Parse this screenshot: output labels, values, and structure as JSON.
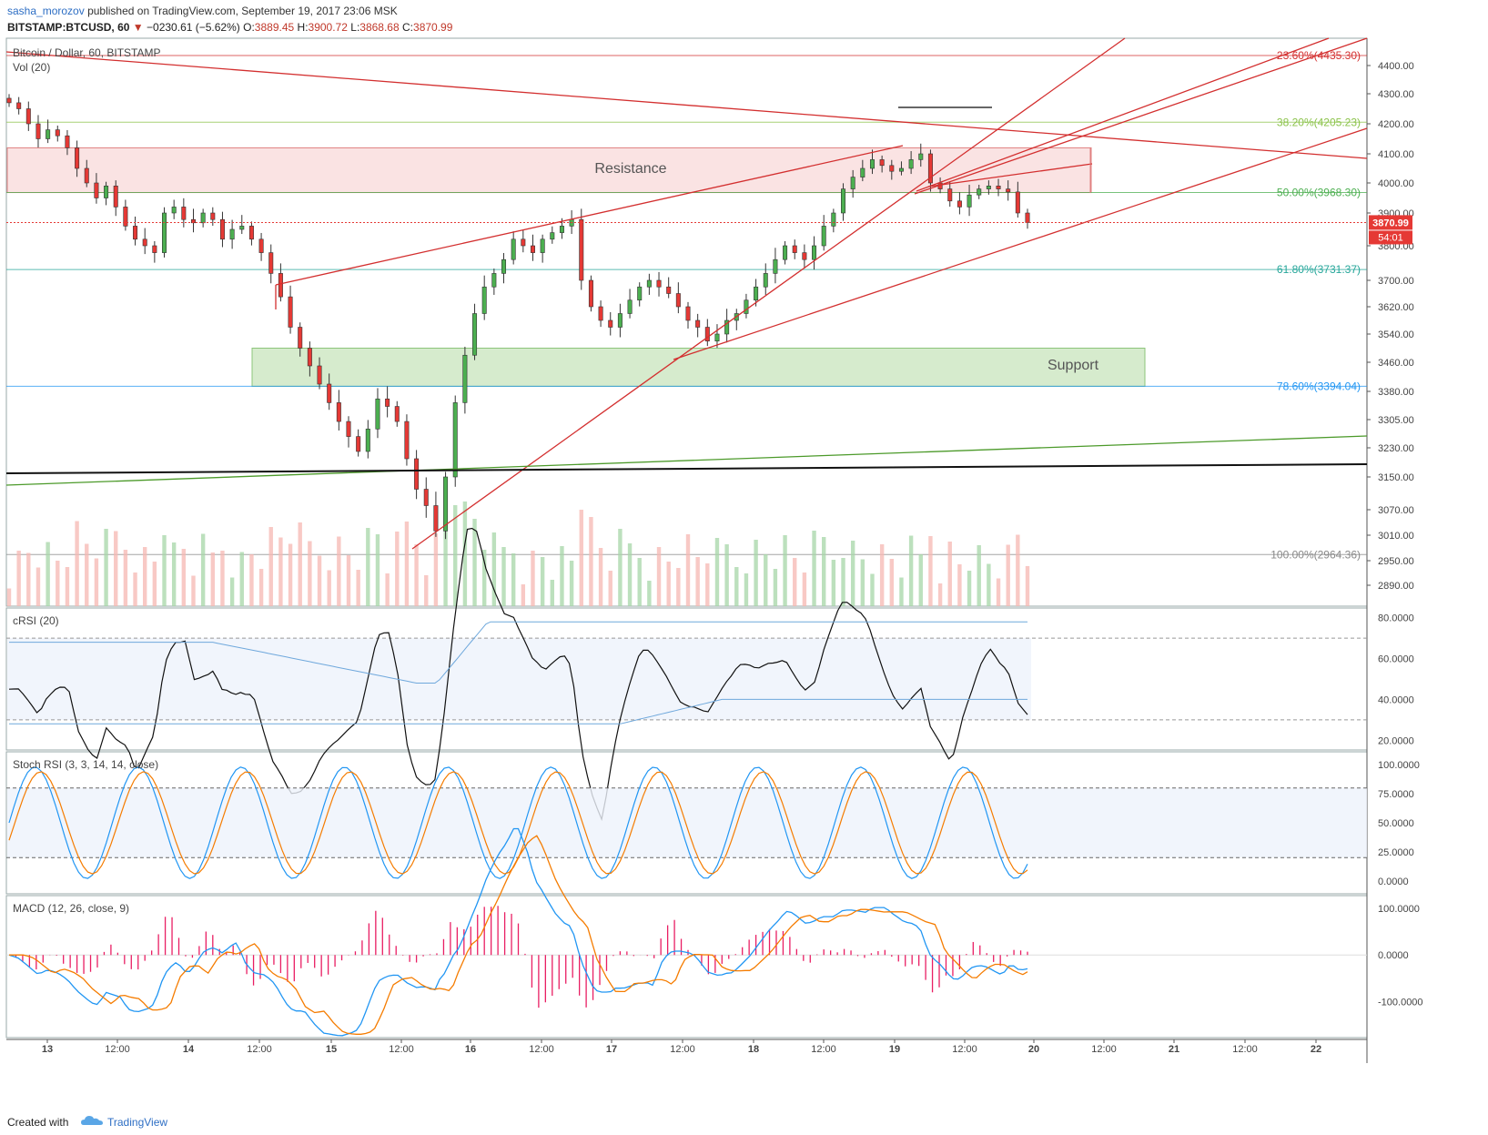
{
  "header": {
    "author": "sasha_morozov",
    "published_text": "published on TradingView.com, September 19, 2017 23:06 MSK",
    "symbol": "BITSTAMP:BTCUSD, 60",
    "change": "−0230.61 (−5.62%)",
    "open_label": "O:",
    "open": "3889.45",
    "high_label": "H:",
    "high": "3900.72",
    "low_label": "L:",
    "low": "3868.68",
    "close_label": "C:",
    "close": "3870.99"
  },
  "colors": {
    "up": "#4caf50",
    "down": "#e53935",
    "resistance_fill": "#f8d7d7",
    "support_fill": "#cfe8c4",
    "trend_red": "#d32f2f",
    "trend_green": "#4c9a2a",
    "macd_line": "#2196f3",
    "signal_line": "#f57c00",
    "hist": "#e91e63"
  },
  "chart_data": [
    {
      "type": "candlestick",
      "title": "Bitcoin / Dollar, 60, BITSTAMP",
      "volume_label": "Vol (20)",
      "x_tick_labels": [
        "13",
        "12:00",
        "14",
        "12:00",
        "15",
        "12:00",
        "16",
        "12:00",
        "17",
        "12:00",
        "18",
        "12:00",
        "19",
        "12:00",
        "20",
        "12:00",
        "21",
        "12:00",
        "22"
      ],
      "y_tick_labels": [
        "4400.00",
        "4300.00",
        "4200.00",
        "4100.00",
        "4000.00",
        "3900.00",
        "3800.00",
        "3700.00",
        "3620.00",
        "3540.00",
        "3460.00",
        "3380.00",
        "3305.00",
        "3230.00",
        "3150.00",
        "3070.00",
        "3010.00",
        "2950.00",
        "2890.00"
      ],
      "last_price": "3870.99",
      "countdown": "54:01",
      "zones": [
        {
          "label": "Resistance",
          "from": 3968,
          "to": 4120
        },
        {
          "label": "Support",
          "from": 3394,
          "to": 3500
        }
      ],
      "fib_levels": [
        {
          "label": "23.60%(4435.30)",
          "value": 4435.3
        },
        {
          "label": "38.20%(4205.23)",
          "value": 4205.23
        },
        {
          "label": "50.00%(3968.30)",
          "value": 3968.3
        },
        {
          "label": "61.80%(3731.37)",
          "value": 3731.37
        },
        {
          "label": "78.60%(3394.04)",
          "value": 3394.04
        },
        {
          "label": "100.00%(2964.36)",
          "value": 2964.36
        }
      ],
      "closes_approx": [
        4270,
        4250,
        4200,
        4150,
        4180,
        4160,
        4120,
        4050,
        4000,
        3950,
        3990,
        3920,
        3860,
        3820,
        3800,
        3780,
        3900,
        3920,
        3880,
        3870,
        3900,
        3880,
        3820,
        3850,
        3860,
        3820,
        3780,
        3720,
        3650,
        3560,
        3500,
        3450,
        3400,
        3350,
        3300,
        3260,
        3220,
        3280,
        3360,
        3340,
        3300,
        3200,
        3120,
        3080,
        3020,
        3150,
        3350,
        3480,
        3600,
        3680,
        3720,
        3760,
        3820,
        3800,
        3780,
        3820,
        3840,
        3860,
        3880,
        3700,
        3620,
        3580,
        3560,
        3600,
        3640,
        3680,
        3700,
        3680,
        3660,
        3620,
        3580,
        3560,
        3520,
        3540,
        3580,
        3600,
        3640,
        3680,
        3720,
        3760,
        3800,
        3780,
        3760,
        3800,
        3860,
        3900,
        3980,
        4020,
        4050,
        4080,
        4060,
        4040,
        4050,
        4080,
        4100,
        4000,
        3980,
        3940,
        3920,
        3960,
        3980,
        3990,
        3980,
        3970,
        3900,
        3871
      ]
    },
    {
      "type": "line",
      "title": "cRSI (20)",
      "y_tick_labels": [
        "80.0000",
        "60.0000",
        "40.0000",
        "20.0000"
      ],
      "ylim": [
        17,
        83
      ]
    },
    {
      "type": "line",
      "title": "Stoch RSI (3, 3, 14, 14, close)",
      "y_tick_labels": [
        "100.0000",
        "75.0000",
        "50.0000",
        "25.0000",
        "0.0000"
      ],
      "ylim": [
        -8,
        108
      ]
    },
    {
      "type": "line",
      "title": "MACD (12, 26, close, 9)",
      "y_tick_labels": [
        "100.0000",
        "0.0000",
        "-100.0000"
      ],
      "ylim": [
        -170,
        120
      ]
    }
  ],
  "footer": {
    "created_with": "Created with",
    "brand": "TradingView"
  }
}
